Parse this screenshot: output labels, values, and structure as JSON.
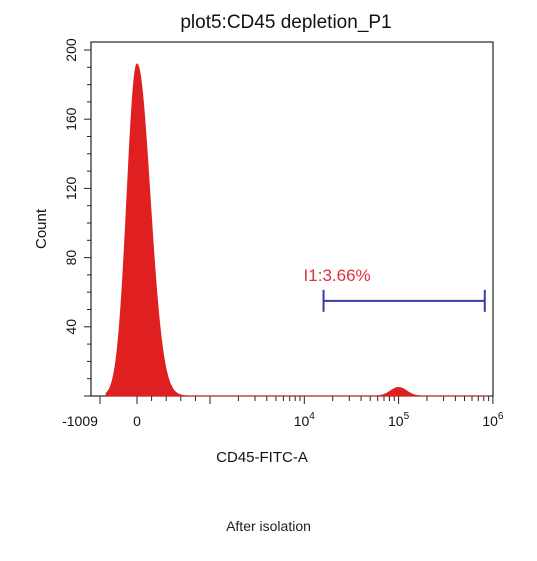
{
  "chart_data": {
    "type": "histogram",
    "title": "plot5:CD45 depletion_P1",
    "xlabel": "CD45-FITC-A",
    "ylabel": "Count",
    "xscale": "biexponential",
    "ylim": [
      0,
      200
    ],
    "y_ticks": [
      {
        "value": 40,
        "label": "40"
      },
      {
        "value": 80,
        "label": "80"
      },
      {
        "value": 120,
        "label": "120"
      },
      {
        "value": 160,
        "label": "160"
      },
      {
        "value": 200,
        "label": "200"
      }
    ],
    "x_ticks": [
      {
        "value": -1009,
        "label": "-1009"
      },
      {
        "value": 0,
        "label": "0"
      },
      {
        "value": 10000,
        "label": "10",
        "exp": "4"
      },
      {
        "value": 100000,
        "label": "10",
        "exp": "5"
      },
      {
        "value": 1000000,
        "label": "10",
        "exp": "6"
      }
    ],
    "fill_color": "#e02020",
    "gate_color": "#3a3aa8",
    "gate_label_color": "#e0303a",
    "series": [
      {
        "peaks": [
          {
            "center": 0,
            "height": 192
          },
          {
            "center": 100000,
            "height": 5
          }
        ]
      }
    ],
    "gate": {
      "label": "I1:3.66%",
      "x_start": 16000,
      "x_end": 820000,
      "y": 55
    },
    "grid": false
  },
  "caption": "After isolation"
}
